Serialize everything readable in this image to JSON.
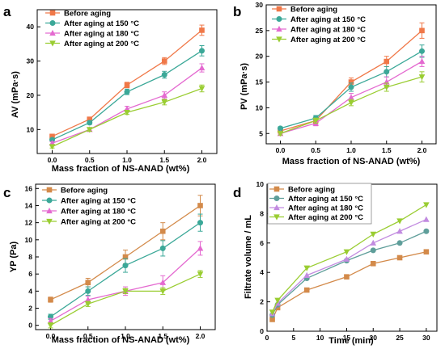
{
  "colors": {
    "before": "#F07848",
    "a150": "#3BA898",
    "a180": "#E46AD0",
    "a200": "#9ACD32",
    "d_before": "#D38A4A",
    "d_a150": "#5F9E9A",
    "d_a180": "#C28BE0",
    "d_a200": "#9ACD32"
  },
  "chart_data": [
    {
      "panel": "a",
      "type": "line",
      "ylabel": "AV (mPa·s)",
      "xlabel": "Mass fraction of NS-ANAD (wt%)",
      "x": [
        0.0,
        0.5,
        1.0,
        1.5,
        2.0
      ],
      "xticks": [
        "0.0",
        "0.5",
        "1.0",
        "1.5",
        "2.0"
      ],
      "ylim": [
        3,
        45
      ],
      "yticks": [
        10,
        20,
        30,
        40
      ],
      "legend_position": "top-left",
      "series": [
        {
          "name": "Before aging",
          "color": "before",
          "marker": "square",
          "values": [
            8,
            13,
            23,
            30,
            39
          ],
          "err": [
            0.5,
            0.5,
            0.8,
            1.0,
            1.5
          ]
        },
        {
          "name": "After aging at 150 °C",
          "color": "a150",
          "marker": "circle",
          "values": [
            7,
            12,
            21,
            26,
            33
          ],
          "err": [
            0.5,
            0.5,
            0.8,
            1.0,
            1.5
          ]
        },
        {
          "name": "After aging at 180 °C",
          "color": "a180",
          "marker": "triangle",
          "values": [
            6,
            10,
            16,
            20,
            28
          ],
          "err": [
            0.4,
            0.5,
            0.8,
            1.0,
            1.2
          ]
        },
        {
          "name": "After aging at 200 °C",
          "color": "a200",
          "marker": "triangle-down",
          "values": [
            5,
            10,
            15,
            18,
            22
          ],
          "err": [
            0.4,
            0.5,
            0.6,
            0.8,
            1.0
          ]
        }
      ]
    },
    {
      "panel": "b",
      "type": "line",
      "ylabel": "PV (mPa·s)",
      "xlabel": "Mass fraction of NS-ANAD (wt%)",
      "x": [
        0.0,
        0.5,
        1.0,
        1.5,
        2.0
      ],
      "xticks": [
        "0.0",
        "0.5",
        "1.0",
        "1.5",
        "2.0"
      ],
      "ylim": [
        3,
        30
      ],
      "yticks": [
        5,
        10,
        15,
        20,
        25,
        30
      ],
      "legend_position": "top-left",
      "series": [
        {
          "name": "Before aging",
          "color": "before",
          "marker": "square",
          "values": [
            5.5,
            7.5,
            15,
            19,
            25
          ],
          "err": [
            0.3,
            0.5,
            0.8,
            1.0,
            1.5
          ]
        },
        {
          "name": "After aging at 150 °C",
          "color": "a150",
          "marker": "circle",
          "values": [
            6,
            8,
            14,
            17,
            21
          ],
          "err": [
            0.3,
            0.5,
            0.8,
            1.0,
            1.2
          ]
        },
        {
          "name": "After aging at 180 °C",
          "color": "a180",
          "marker": "triangle",
          "values": [
            5,
            7,
            12,
            15,
            19
          ],
          "err": [
            0.3,
            0.5,
            0.8,
            1.0,
            1.0
          ]
        },
        {
          "name": "After aging at 200 °C",
          "color": "a200",
          "marker": "triangle-down",
          "values": [
            5,
            7.5,
            11,
            14,
            16
          ],
          "err": [
            0.3,
            0.5,
            0.6,
            0.8,
            1.0
          ]
        }
      ]
    },
    {
      "panel": "c",
      "type": "line",
      "ylabel": "YP (Pa)",
      "xlabel": "Mass fraction of NS-ANAD (wt%)",
      "x": [
        0.0,
        0.5,
        1.0,
        1.5,
        2.0
      ],
      "xticks": [
        "0.0",
        "0.5",
        "1.0",
        "1.5",
        "2.0"
      ],
      "ylim": [
        -0.5,
        16.5
      ],
      "yticks": [
        0,
        2,
        4,
        6,
        8,
        10,
        12,
        14,
        16
      ],
      "legend_position": "top-left",
      "series": [
        {
          "name": "Before aging",
          "color": "d_before",
          "marker": "square",
          "values": [
            3,
            5,
            8,
            11,
            14
          ],
          "err": [
            0.3,
            0.5,
            0.8,
            1.0,
            1.2
          ]
        },
        {
          "name": "After aging at 150 °C",
          "color": "a150",
          "marker": "circle",
          "values": [
            1,
            4,
            7,
            9,
            12
          ],
          "err": [
            0.3,
            0.5,
            0.8,
            0.9,
            1.0
          ]
        },
        {
          "name": "After aging at 180 °C",
          "color": "a180",
          "marker": "triangle",
          "values": [
            0.5,
            3,
            4,
            5,
            9
          ],
          "err": [
            0.3,
            0.4,
            0.5,
            0.8,
            0.8
          ]
        },
        {
          "name": "After aging at 200 °C",
          "color": "a200",
          "marker": "triangle-down",
          "values": [
            0,
            2.5,
            4,
            4,
            6
          ],
          "err": [
            0.3,
            0.3,
            0.3,
            0.4,
            0.4
          ]
        }
      ]
    },
    {
      "panel": "d",
      "type": "line",
      "ylabel": "Filtrate volume / mL",
      "xlabel": "Time (min)",
      "xlim": [
        0,
        32
      ],
      "xtick_values": [
        0,
        5,
        10,
        15,
        20,
        25,
        30
      ],
      "xticks": [
        "0",
        "5",
        "10",
        "15",
        "20",
        "25",
        "30"
      ],
      "ylim": [
        0,
        10
      ],
      "yticks": [
        0,
        2,
        4,
        6,
        8,
        10
      ],
      "legend_position": "top-left",
      "x": [
        1,
        2,
        7.5,
        15,
        20,
        25,
        30
      ],
      "series": [
        {
          "name": "Before aging",
          "color": "d_before",
          "marker": "square",
          "values": [
            0.8,
            1.6,
            2.8,
            3.7,
            4.6,
            5.0,
            5.4
          ]
        },
        {
          "name": "After aging at 150 °C",
          "color": "d_a150",
          "marker": "circle",
          "values": [
            1.1,
            1.8,
            3.6,
            4.8,
            5.5,
            6.0,
            6.8
          ]
        },
        {
          "name": "After aging at 180 °C",
          "color": "d_a180",
          "marker": "triangle",
          "values": [
            1.2,
            1.9,
            3.8,
            4.9,
            6.0,
            6.8,
            7.6
          ]
        },
        {
          "name": "After aging at 200 °C",
          "color": "d_a200",
          "marker": "triangle-down",
          "values": [
            1.3,
            2.1,
            4.3,
            5.4,
            6.6,
            7.5,
            8.6
          ]
        }
      ]
    }
  ]
}
